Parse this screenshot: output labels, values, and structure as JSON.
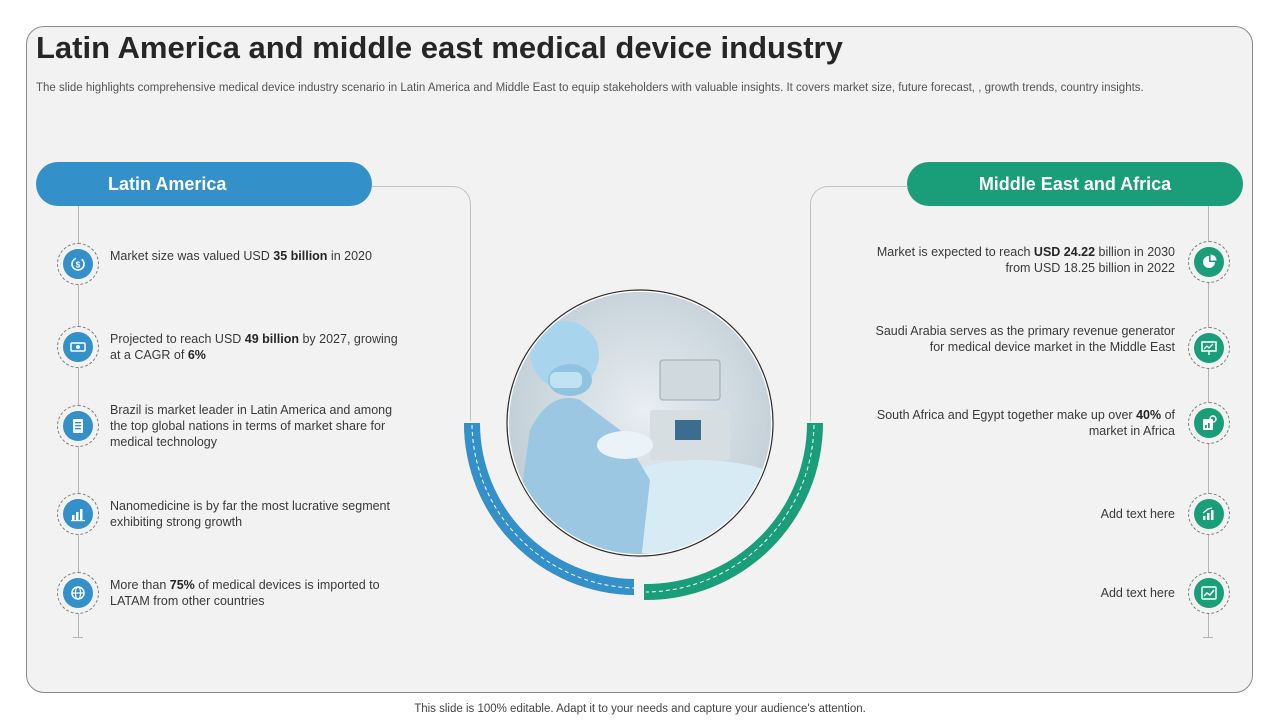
{
  "title": "Latin America and middle east medical device industry",
  "subtitle": "The slide highlights comprehensive medical device industry scenario in Latin America and Middle East to equip stakeholders with valuable insights.  It covers market size, future forecast, , growth trends, country insights.",
  "colors": {
    "blue": "#3390c9",
    "green": "#1a9e7a",
    "slide_bg": "#f2f2f2"
  },
  "latin_america": {
    "heading": "Latin America",
    "items": [
      {
        "icon": "money-cycle-icon",
        "pre": "Market size was valued USD ",
        "bold": "35 billion",
        "post": " in 2020"
      },
      {
        "icon": "cash-icon",
        "pre": "Projected to reach USD ",
        "bold": "49 billion",
        "mid": " by 2027, growing at a CAGR of ",
        "bold2": "6%",
        "post": ""
      },
      {
        "icon": "document-list-icon",
        "pre": "Brazil is market leader in Latin America and among the top global nations in terms of market share for medical technology",
        "bold": "",
        "post": ""
      },
      {
        "icon": "bar-chart-icon",
        "pre": "Nanomedicine is by far the most lucrative segment exhibiting strong growth",
        "bold": "",
        "post": ""
      },
      {
        "icon": "globe-import-icon",
        "pre": "More than ",
        "bold": "75%",
        "post": " of medical devices is imported to LATAM from other countries"
      }
    ]
  },
  "middle_east": {
    "heading": "Middle East and Africa",
    "items": [
      {
        "icon": "pie-chart-icon",
        "pre": "Market is expected to reach ",
        "bold": "USD 24.22",
        "post": " billion in 2030 from USD 18.25 billion in 2022"
      },
      {
        "icon": "presentation-icon",
        "pre": "Saudi Arabia serves as the primary revenue generator for medical device market in the Middle East",
        "bold": "",
        "post": ""
      },
      {
        "icon": "report-gear-icon",
        "pre": "South Africa and Egypt together make up over ",
        "bold": "40%",
        "post": " of market in Africa"
      },
      {
        "icon": "growth-chart-icon",
        "pre": "Add text here",
        "bold": "",
        "post": ""
      },
      {
        "icon": "trend-chart-icon",
        "pre": "Add text here",
        "bold": "",
        "post": ""
      }
    ]
  },
  "footer": "This slide is 100% editable. Adapt it to your needs and capture your audience's attention."
}
